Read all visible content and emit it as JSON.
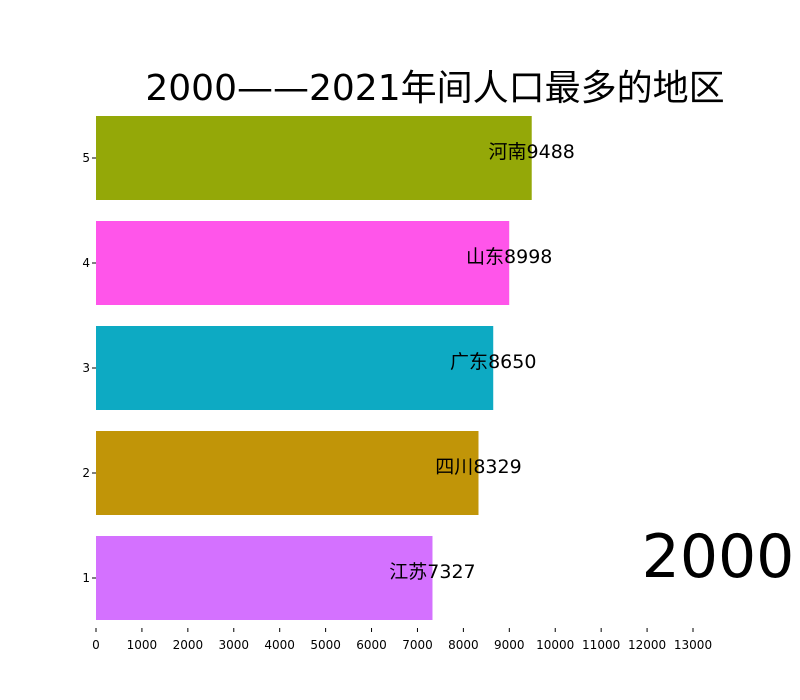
{
  "chart_data": {
    "type": "bar",
    "orientation": "horizontal",
    "title": "2000——2021年间人口最多的地区",
    "year_label": "2000",
    "ranks": [
      "5",
      "4",
      "3",
      "2",
      "1"
    ],
    "bars": [
      {
        "rank": "5",
        "region": "河南",
        "value": 9488,
        "value_text": "9488",
        "color": "#94a808"
      },
      {
        "rank": "4",
        "region": "山东",
        "value": 8998,
        "value_text": "8998",
        "color": "#ff55ea"
      },
      {
        "rank": "3",
        "region": "广东",
        "value": 8650,
        "value_text": "8650",
        "color": "#0daac3"
      },
      {
        "rank": "2",
        "region": "四川",
        "value": 8329,
        "value_text": "8329",
        "color": "#c19508"
      },
      {
        "rank": "1",
        "region": "江苏",
        "value": 7327,
        "value_text": "7327",
        "color": "#d471ff"
      }
    ],
    "xlim": [
      0,
      13000
    ],
    "xticks": [
      "0",
      "1000",
      "2000",
      "3000",
      "4000",
      "5000",
      "6000",
      "7000",
      "8000",
      "9000",
      "10000",
      "11000",
      "12000",
      "13000"
    ],
    "grid": false,
    "legend": "none"
  }
}
